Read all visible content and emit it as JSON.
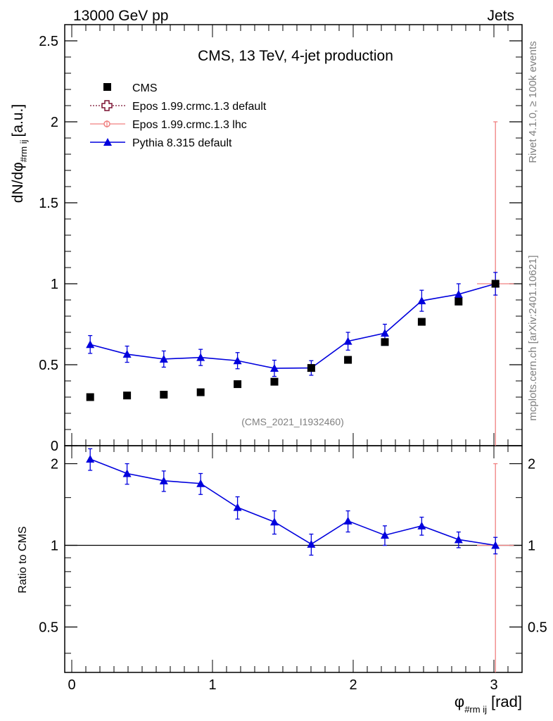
{
  "header": {
    "left": "13000 GeV pp",
    "right": "Jets"
  },
  "side_labels": {
    "rivet": "Rivet 4.1.0, ≥ 100k events",
    "mcplots": "mcplots.cern.ch [arXiv:2401.10621]"
  },
  "colors": {
    "cms": "#000000",
    "epos_default": "#7a1030",
    "epos_lhc": "#f08080",
    "pythia": "#0000dd"
  },
  "chart_data": [
    {
      "type": "scatter",
      "title": "CMS, 13 TeV, 4-jet production",
      "watermark": "(CMS_2021_I1932460)",
      "ylabel": {
        "main": "dN/dφ",
        "sub": "#rm ij",
        "unit": "[a.u.]"
      },
      "xlim": [
        -0.05,
        3.2
      ],
      "ylim": [
        0,
        2.6
      ],
      "yticks": [
        {
          "v": 0,
          "label": "0"
        },
        {
          "v": 0.5,
          "label": "0.5"
        },
        {
          "v": 1,
          "label": "1"
        },
        {
          "v": 1.5,
          "label": "1.5"
        },
        {
          "v": 2,
          "label": "2"
        },
        {
          "v": 2.5,
          "label": "2.5"
        }
      ],
      "legend": [
        {
          "name": "CMS",
          "marker": "square"
        },
        {
          "name": "Epos 1.99.crmc.1.3 default",
          "marker": "open-cross"
        },
        {
          "name": "Epos 1.99.crmc.1.3 lhc",
          "marker": "circle-cross"
        },
        {
          "name": "Pythia 8.315 default",
          "marker": "triangle"
        }
      ],
      "x": [
        0.131,
        0.393,
        0.654,
        0.916,
        1.178,
        1.44,
        1.702,
        1.963,
        2.225,
        2.487,
        2.749,
        3.011
      ],
      "series": [
        {
          "name": "CMS",
          "values": [
            0.3,
            0.31,
            0.315,
            0.33,
            0.38,
            0.395,
            0.48,
            0.53,
            0.64,
            0.765,
            0.89,
            1.0
          ],
          "errors": [
            0,
            0,
            0,
            0,
            0,
            0,
            0,
            0,
            0,
            0,
            0,
            0
          ]
        },
        {
          "name": "Epos 1.99.crmc.1.3 lhc",
          "values": [
            null,
            null,
            null,
            null,
            null,
            null,
            null,
            null,
            null,
            null,
            null,
            1.0
          ],
          "errors": [
            0,
            0,
            0,
            0,
            0,
            0,
            0,
            0,
            0,
            0,
            0,
            1.0
          ],
          "xerr": 0.131
        },
        {
          "name": "Pythia 8.315 default",
          "values": [
            0.625,
            0.565,
            0.535,
            0.545,
            0.525,
            0.478,
            0.48,
            0.645,
            0.695,
            0.895,
            0.935,
            1.0
          ],
          "errors": [
            0.055,
            0.05,
            0.05,
            0.05,
            0.05,
            0.05,
            0.045,
            0.055,
            0.055,
            0.065,
            0.065,
            0.07
          ]
        }
      ]
    },
    {
      "type": "scatter",
      "ylabel": "Ratio to CMS",
      "xlabel": {
        "main": "φ",
        "sub": "#rm ij",
        "unit": "[rad]"
      },
      "xlim": [
        -0.05,
        3.2
      ],
      "ylim": [
        0.34,
        2.33
      ],
      "log_y": true,
      "yticks": [
        {
          "v": 0.5,
          "label": "0.5"
        },
        {
          "v": 1,
          "label": "1"
        },
        {
          "v": 2,
          "label": "2"
        }
      ],
      "xticks": [
        {
          "v": 0,
          "label": "0"
        },
        {
          "v": 1,
          "label": "1"
        },
        {
          "v": 2,
          "label": "2"
        },
        {
          "v": 3,
          "label": "3"
        }
      ],
      "reference": 1,
      "x": [
        0.131,
        0.393,
        0.654,
        0.916,
        1.178,
        1.44,
        1.702,
        1.963,
        2.225,
        2.487,
        2.749,
        3.011
      ],
      "series": [
        {
          "name": "Epos 1.99.crmc.1.3 lhc",
          "values": [
            null,
            null,
            null,
            null,
            null,
            null,
            null,
            null,
            null,
            null,
            null,
            1.0
          ],
          "errors": [
            0,
            0,
            0,
            0,
            0,
            0,
            0,
            0,
            0,
            0,
            0,
            1.0
          ],
          "xerr": 0.131
        },
        {
          "name": "Pythia 8.315 default",
          "values": [
            2.08,
            1.84,
            1.73,
            1.69,
            1.38,
            1.22,
            1.01,
            1.23,
            1.09,
            1.18,
            1.05,
            1.0
          ],
          "errors": [
            0.19,
            0.16,
            0.15,
            0.15,
            0.13,
            0.12,
            0.09,
            0.11,
            0.09,
            0.09,
            0.07,
            0.07
          ]
        }
      ]
    }
  ]
}
